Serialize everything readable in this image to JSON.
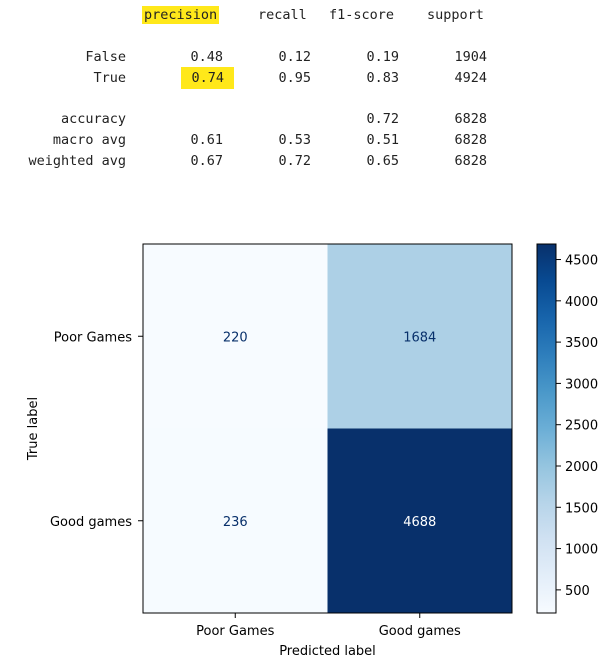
{
  "report": {
    "columns": [
      "precision",
      "recall",
      "f1-score",
      "support"
    ],
    "highlight_color": "#ffe81a",
    "rows": [
      {
        "label": "False",
        "precision": "0.48",
        "recall": "0.12",
        "f1": "0.19",
        "support": "1904"
      },
      {
        "label": "True",
        "precision": "0.74",
        "recall": "0.95",
        "f1": "0.83",
        "support": "4924"
      },
      {
        "label": "accuracy",
        "precision": "",
        "recall": "",
        "f1": "0.72",
        "support": "6828"
      },
      {
        "label": "macro avg",
        "precision": "0.61",
        "recall": "0.53",
        "f1": "0.51",
        "support": "6828"
      },
      {
        "label": "weighted avg",
        "precision": "0.67",
        "recall": "0.72",
        "f1": "0.65",
        "support": "6828"
      }
    ]
  },
  "chart_data": {
    "type": "heatmap",
    "title": "",
    "xlabel": "Predicted label",
    "ylabel": "True label",
    "x_categories": [
      "Poor Games",
      "Good games"
    ],
    "y_categories": [
      "Poor Games",
      "Good games"
    ],
    "values": [
      [
        220,
        1684
      ],
      [
        236,
        4688
      ]
    ],
    "colormap": "Blues",
    "colorbar": {
      "min": 220,
      "max": 4688,
      "ticks": [
        500,
        1000,
        1500,
        2000,
        2500,
        3000,
        3500,
        4000,
        4500
      ]
    }
  }
}
